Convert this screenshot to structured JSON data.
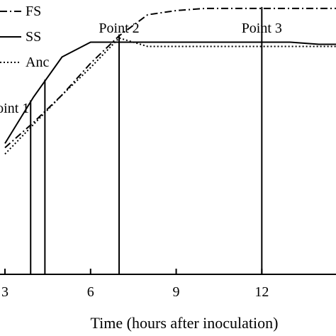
{
  "chart_data": {
    "type": "line",
    "title": "",
    "xlabel": "Time (hours after inoculation)",
    "ylabel": "",
    "xlim": [
      3,
      14.6
    ],
    "ylim": [
      0,
      1.3
    ],
    "x_ticks": [
      3,
      6,
      9,
      12
    ],
    "x_tick_labels": [
      "3",
      "6",
      "9",
      "12"
    ],
    "grid": false,
    "legend_position": "top-left",
    "series": [
      {
        "name": "FS",
        "style": "dash-dot",
        "color": "#000000",
        "x": [
          3,
          4,
          5,
          6,
          7,
          8,
          9,
          10,
          11,
          12,
          13,
          14,
          14.6
        ],
        "y": [
          0.6,
          0.72,
          0.85,
          1.0,
          1.13,
          1.23,
          1.25,
          1.26,
          1.26,
          1.26,
          1.26,
          1.26,
          1.26
        ]
      },
      {
        "name": "SS",
        "style": "solid",
        "color": "#000000",
        "x": [
          3,
          4,
          5,
          6,
          7,
          8,
          9,
          10,
          11,
          12,
          13,
          14,
          14.6
        ],
        "y": [
          0.62,
          0.84,
          1.03,
          1.1,
          1.1,
          1.1,
          1.1,
          1.1,
          1.1,
          1.1,
          1.1,
          1.09,
          1.09
        ]
      },
      {
        "name": "Anc",
        "style": "dotted",
        "color": "#000000",
        "x": [
          3,
          4,
          5,
          6,
          7,
          8,
          9,
          10,
          11,
          12,
          13,
          14,
          14.6
        ],
        "y": [
          0.57,
          0.71,
          0.85,
          0.98,
          1.12,
          1.08,
          1.08,
          1.08,
          1.08,
          1.08,
          1.08,
          1.08,
          1.08
        ]
      }
    ],
    "annotations": [
      {
        "text": "oint 1",
        "x": 3.9
      },
      {
        "text": "",
        "x": 4.4
      },
      {
        "text": "Point 2",
        "x": 7.0
      },
      {
        "text": "Point 3",
        "x": 12.0
      }
    ]
  }
}
